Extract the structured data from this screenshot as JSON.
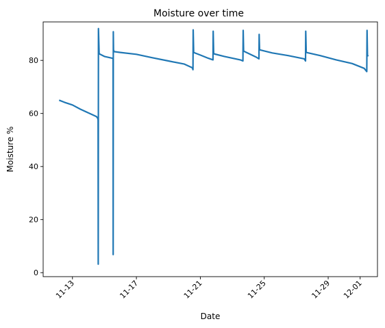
{
  "chart_data": {
    "type": "line",
    "title": "Moisture over time",
    "xlabel": "Date",
    "ylabel": "Moisture %",
    "x_tick_labels": [
      "11-13",
      "11-17",
      "11-21",
      "11-25",
      "11-29",
      "12-01"
    ],
    "x_tick_dates": [
      "2023-11-13",
      "2023-11-17",
      "2023-11-21",
      "2023-11-25",
      "2023-11-29",
      "2023-12-01"
    ],
    "y_ticks": [
      0,
      20,
      40,
      60,
      80
    ],
    "xlim": [
      "2023-11-11 04:00",
      "2023-12-02 02:00"
    ],
    "ylim": [
      -1.5,
      94.5
    ],
    "grid": false,
    "line_color": "#1f77b4",
    "series": [
      {
        "x": [
          "2023-11-12 04:00",
          "2023-11-12 12:00",
          "2023-11-13 00:00",
          "2023-11-13 12:00",
          "2023-11-14 00:00",
          "2023-11-14 12:00",
          "2023-11-14 14:00",
          "2023-11-14 14:30",
          "2023-11-14 14:45",
          "2023-11-14 15:00",
          "2023-11-14 16:00",
          "2023-11-15 00:00",
          "2023-11-15 12:00",
          "2023-11-15 13:00",
          "2023-11-15 13:10",
          "2023-11-15 13:20",
          "2023-11-15 13:40",
          "2023-11-15 14:30",
          "2023-11-16 00:00",
          "2023-11-17 00:00",
          "2023-11-18 00:00",
          "2023-11-19 00:00",
          "2023-11-20 00:00",
          "2023-11-20 12:00",
          "2023-11-20 13:00",
          "2023-11-20 13:20",
          "2023-11-20 14:00",
          "2023-11-21 00:00",
          "2023-11-21 12:00",
          "2023-11-21 19:00",
          "2023-11-21 19:20",
          "2023-11-21 20:00",
          "2023-11-22 12:00",
          "2023-11-23 12:00",
          "2023-11-23 16:00",
          "2023-11-23 16:20",
          "2023-11-23 17:00",
          "2023-11-24 12:00",
          "2023-11-24 16:00",
          "2023-11-24 16:20",
          "2023-11-24 17:00",
          "2023-11-25 12:00",
          "2023-11-26 12:00",
          "2023-11-27 12:00",
          "2023-11-27 14:00",
          "2023-11-27 14:20",
          "2023-11-27 15:00",
          "2023-11-28 12:00",
          "2023-11-29 12:00",
          "2023-11-30 12:00",
          "2023-12-01 06:00",
          "2023-12-01 10:00",
          "2023-12-01 10:20",
          "2023-12-01 11:00",
          "2023-12-01 12:00"
        ],
        "values": [
          65.0,
          64.2,
          63.2,
          61.6,
          60.2,
          58.8,
          58.2,
          57.5,
          3.2,
          92.0,
          82.5,
          81.5,
          80.8,
          80.6,
          6.8,
          90.8,
          84.0,
          83.3,
          83.0,
          82.3,
          81.0,
          79.8,
          78.6,
          77.2,
          76.5,
          91.5,
          83.0,
          82.0,
          80.8,
          80.2,
          91.0,
          82.5,
          81.5,
          80.2,
          79.8,
          91.3,
          83.5,
          81.2,
          80.6,
          89.8,
          84.0,
          82.8,
          81.8,
          80.6,
          79.8,
          91.0,
          83.0,
          81.8,
          80.2,
          78.8,
          77.0,
          75.8,
          91.3,
          82.0,
          81.5
        ]
      }
    ]
  }
}
